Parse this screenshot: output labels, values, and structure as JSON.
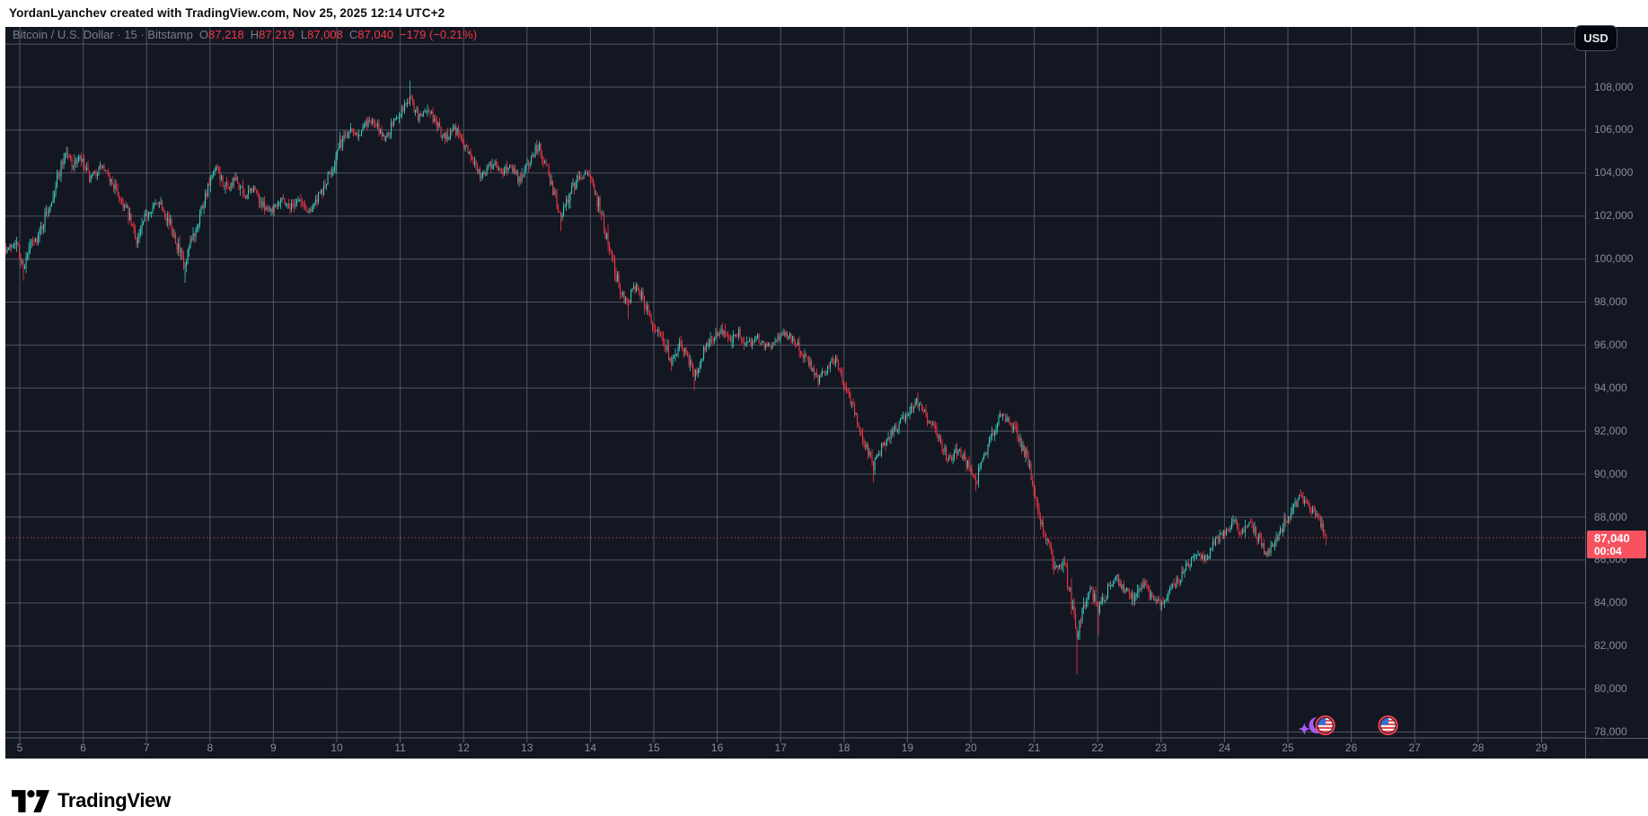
{
  "header": {
    "attribution": "YordanLyanchev created with TradingView.com, Nov 25, 2025 12:14 UTC+2"
  },
  "chart": {
    "legend": {
      "symbol_title": "Bitcoin / U.S. Dollar · 15 · Bitstamp",
      "ohlc": [
        [
          "O",
          "87,218"
        ],
        [
          "H",
          "87,219"
        ],
        [
          "L",
          "87,008"
        ],
        [
          "C",
          "87,040"
        ]
      ],
      "change": "−179 (−0.21%)"
    },
    "currency_button_label": "USD",
    "price_axis_labels": [
      "108,000",
      "106,000",
      "104,000",
      "102,000",
      "100,000",
      "98,000",
      "96,000",
      "94,000",
      "92,000",
      "90,000",
      "88,000",
      "86,000",
      "84,000",
      "82,000",
      "80,000",
      "78,000"
    ],
    "current_price": {
      "value": "87,040",
      "countdown": "00:04"
    },
    "time_axis_labels": [
      "5",
      "6",
      "7",
      "8",
      "9",
      "10",
      "11",
      "12",
      "13",
      "14",
      "15",
      "16",
      "17",
      "18",
      "19",
      "20",
      "21",
      "22",
      "23",
      "24",
      "25",
      "26",
      "27",
      "28",
      "29"
    ]
  },
  "footer": {
    "brand": "TradingView"
  },
  "colors": {
    "background": "#131722",
    "grid": "#5a5f6d",
    "up": "#3bc9ba",
    "down": "#f23645",
    "axis_text": "#878c98",
    "price_line": "#f7525f",
    "price_badge": "#f7525f",
    "legend_text": "#787e8a",
    "purple": "#a55cf7",
    "flag_ring": "#ef4050",
    "flag_blue": "#3c6dd5",
    "flag_red": "#e24a4a"
  },
  "chart_data": {
    "type": "candlestick",
    "title": "Bitcoin / U.S. Dollar",
    "exchange": "Bitstamp",
    "interval_minutes": 15,
    "last_bar": {
      "open": 87218,
      "high": 87219,
      "low": 87008,
      "close": 87040,
      "change": -179,
      "change_pct": -0.21
    },
    "x_axis": {
      "unit": "day of November 2025",
      "domain": [
        4.69,
        29.72
      ],
      "tick_days": [
        5,
        6,
        7,
        8,
        9,
        10,
        11,
        12,
        13,
        14,
        15,
        16,
        17,
        18,
        19,
        20,
        21,
        22,
        23,
        24,
        25,
        26,
        27,
        28,
        29
      ]
    },
    "y_axis": {
      "domain": [
        77730,
        110800
      ],
      "grid_step": 2000,
      "labeled_range": [
        78000,
        108000
      ]
    },
    "current_price": 87040,
    "price_path_anchors": [
      [
        4.69,
        101100
      ],
      [
        4.8,
        100400
      ],
      [
        4.92,
        100900
      ],
      [
        5.04,
        99600
      ],
      [
        5.18,
        100700
      ],
      [
        5.26,
        100900
      ],
      [
        5.47,
        102600
      ],
      [
        5.6,
        103900
      ],
      [
        5.71,
        105000
      ],
      [
        5.83,
        104400
      ],
      [
        5.94,
        104700
      ],
      [
        6.1,
        103700
      ],
      [
        6.28,
        104300
      ],
      [
        6.46,
        103500
      ],
      [
        6.67,
        102300
      ],
      [
        6.84,
        100900
      ],
      [
        7.03,
        102300
      ],
      [
        7.21,
        102700
      ],
      [
        7.45,
        101000
      ],
      [
        7.59,
        99500
      ],
      [
        7.73,
        101100
      ],
      [
        7.92,
        103000
      ],
      [
        8.09,
        104200
      ],
      [
        8.26,
        103200
      ],
      [
        8.4,
        103700
      ],
      [
        8.54,
        102900
      ],
      [
        8.68,
        103300
      ],
      [
        8.82,
        102500
      ],
      [
        8.97,
        102300
      ],
      [
        9.11,
        102900
      ],
      [
        9.25,
        102400
      ],
      [
        9.39,
        102800
      ],
      [
        9.53,
        102200
      ],
      [
        9.67,
        102700
      ],
      [
        9.79,
        103300
      ],
      [
        9.93,
        104300
      ],
      [
        10.07,
        105500
      ],
      [
        10.21,
        106100
      ],
      [
        10.35,
        105800
      ],
      [
        10.5,
        106500
      ],
      [
        10.64,
        106100
      ],
      [
        10.75,
        105600
      ],
      [
        10.89,
        106400
      ],
      [
        11.03,
        107000
      ],
      [
        11.15,
        107500
      ],
      [
        11.28,
        106600
      ],
      [
        11.42,
        107000
      ],
      [
        11.56,
        106300
      ],
      [
        11.7,
        105600
      ],
      [
        11.84,
        106200
      ],
      [
        11.98,
        105400
      ],
      [
        12.13,
        104700
      ],
      [
        12.27,
        103900
      ],
      [
        12.45,
        104500
      ],
      [
        12.59,
        104000
      ],
      [
        12.73,
        104400
      ],
      [
        12.88,
        103600
      ],
      [
        13.02,
        104500
      ],
      [
        13.16,
        105300
      ],
      [
        13.3,
        104400
      ],
      [
        13.41,
        103200
      ],
      [
        13.53,
        102000
      ],
      [
        13.67,
        103100
      ],
      [
        13.81,
        103800
      ],
      [
        13.92,
        104000
      ],
      [
        14.07,
        103200
      ],
      [
        14.18,
        101800
      ],
      [
        14.32,
        100300
      ],
      [
        14.43,
        98800
      ],
      [
        14.58,
        98000
      ],
      [
        14.72,
        98900
      ],
      [
        14.86,
        97800
      ],
      [
        15.0,
        96900
      ],
      [
        15.14,
        96300
      ],
      [
        15.26,
        95200
      ],
      [
        15.4,
        96000
      ],
      [
        15.54,
        95400
      ],
      [
        15.62,
        94400
      ],
      [
        15.77,
        95700
      ],
      [
        15.91,
        96300
      ],
      [
        16.05,
        96700
      ],
      [
        16.19,
        96200
      ],
      [
        16.33,
        96600
      ],
      [
        16.47,
        96000
      ],
      [
        16.61,
        96400
      ],
      [
        16.76,
        95900
      ],
      [
        16.9,
        96100
      ],
      [
        17.04,
        96600
      ],
      [
        17.18,
        96300
      ],
      [
        17.32,
        95700
      ],
      [
        17.46,
        95100
      ],
      [
        17.58,
        94400
      ],
      [
        17.72,
        94900
      ],
      [
        17.86,
        95400
      ],
      [
        18.0,
        94200
      ],
      [
        18.12,
        93200
      ],
      [
        18.23,
        92200
      ],
      [
        18.34,
        91200
      ],
      [
        18.46,
        90400
      ],
      [
        18.6,
        91300
      ],
      [
        18.74,
        91900
      ],
      [
        18.88,
        92400
      ],
      [
        19.02,
        92800
      ],
      [
        19.14,
        93400
      ],
      [
        19.28,
        92700
      ],
      [
        19.42,
        92100
      ],
      [
        19.53,
        91400
      ],
      [
        19.65,
        90600
      ],
      [
        19.79,
        91200
      ],
      [
        19.93,
        90500
      ],
      [
        20.07,
        89700
      ],
      [
        20.21,
        90900
      ],
      [
        20.35,
        92000
      ],
      [
        20.47,
        92800
      ],
      [
        20.61,
        92400
      ],
      [
        20.75,
        91700
      ],
      [
        20.89,
        90600
      ],
      [
        21.01,
        89200
      ],
      [
        21.12,
        87600
      ],
      [
        21.23,
        86700
      ],
      [
        21.35,
        85400
      ],
      [
        21.46,
        85900
      ],
      [
        21.57,
        84300
      ],
      [
        21.66,
        82600
      ],
      [
        21.77,
        83900
      ],
      [
        21.88,
        84800
      ],
      [
        22.0,
        83600
      ],
      [
        22.14,
        84600
      ],
      [
        22.28,
        85200
      ],
      [
        22.42,
        84600
      ],
      [
        22.56,
        84200
      ],
      [
        22.71,
        84900
      ],
      [
        22.85,
        84200
      ],
      [
        22.99,
        83900
      ],
      [
        23.13,
        84600
      ],
      [
        23.27,
        85100
      ],
      [
        23.41,
        85700
      ],
      [
        23.56,
        86300
      ],
      [
        23.7,
        86100
      ],
      [
        23.84,
        86800
      ],
      [
        23.98,
        87200
      ],
      [
        24.12,
        87800
      ],
      [
        24.26,
        87300
      ],
      [
        24.4,
        87700
      ],
      [
        24.55,
        86900
      ],
      [
        24.66,
        86300
      ],
      [
        24.8,
        87000
      ],
      [
        24.94,
        87700
      ],
      [
        25.08,
        88500
      ],
      [
        25.2,
        89000
      ],
      [
        25.31,
        88500
      ],
      [
        25.42,
        88100
      ],
      [
        25.54,
        87500
      ],
      [
        25.6,
        87040
      ]
    ],
    "wick_extremes": [
      [
        5.04,
        99000
      ],
      [
        7.59,
        98900
      ],
      [
        11.15,
        108300
      ],
      [
        13.53,
        101300
      ],
      [
        14.58,
        97200
      ],
      [
        15.26,
        94800
      ],
      [
        15.62,
        93900
      ],
      [
        18.46,
        89600
      ],
      [
        20.07,
        89200
      ],
      [
        21.66,
        80700
      ],
      [
        22.0,
        82500
      ],
      [
        25.2,
        89300
      ]
    ],
    "event_markers": [
      {
        "day": 25.26,
        "kind": "sparkle"
      },
      {
        "day": 25.46,
        "kind": "moon"
      },
      {
        "day": 25.59,
        "kind": "us-flag"
      },
      {
        "day": 26.58,
        "kind": "us-flag"
      }
    ]
  }
}
